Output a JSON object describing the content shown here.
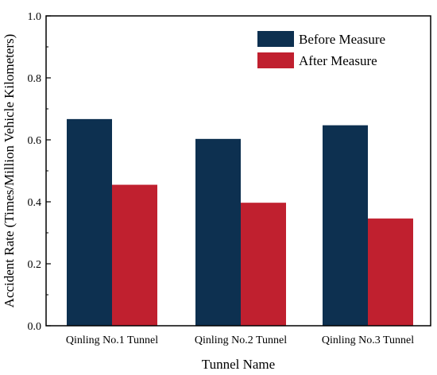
{
  "chart_data": {
    "type": "bar",
    "title": "",
    "xlabel": "Tunnel Name",
    "ylabel": "Accident Rate (Times/Million Vehicle Kilometers)",
    "categories": [
      "Qinling No.1 Tunnel",
      "Qinling No.2 Tunnel",
      "Qinling No.3 Tunnel"
    ],
    "series": [
      {
        "name": "Before  Measure",
        "color": "#0d3050",
        "values": [
          0.667,
          0.603,
          0.647
        ]
      },
      {
        "name": "After  Measure",
        "color": "#c0202f",
        "values": [
          0.455,
          0.397,
          0.346
        ]
      }
    ],
    "ylim": [
      0,
      1.0
    ],
    "yticks": [
      "0.0",
      "0.2",
      "0.4",
      "0.6",
      "0.8",
      "1.0"
    ],
    "grid": false,
    "legend_position": "top-right"
  }
}
